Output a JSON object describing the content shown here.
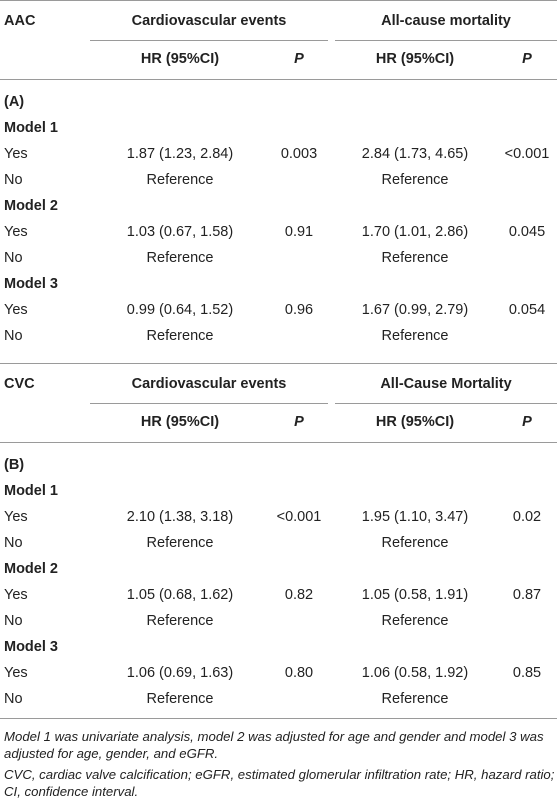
{
  "panelA": {
    "var": "AAC",
    "outcome1": "Cardiovascular events",
    "outcome2": "All-cause mortality",
    "hr_header": "HR (95%CI)",
    "p_header": "P",
    "label": "(A)",
    "models": [
      {
        "name": "Model 1",
        "yes": "Yes",
        "no": "No",
        "hr1": "1.87 (1.23, 2.84)",
        "p1": "0.003",
        "hr2": "2.84 (1.73, 4.65)",
        "p2": "<0.001",
        "ref": "Reference"
      },
      {
        "name": "Model 2",
        "yes": "Yes",
        "no": "No",
        "hr1": "1.03 (0.67, 1.58)",
        "p1": "0.91",
        "hr2": "1.70 (1.01, 2.86)",
        "p2": "0.045",
        "ref": "Reference"
      },
      {
        "name": "Model 3",
        "yes": "Yes",
        "no": "No",
        "hr1": "0.99 (0.64, 1.52)",
        "p1": "0.96",
        "hr2": "1.67 (0.99, 2.79)",
        "p2": "0.054",
        "ref": "Reference"
      }
    ]
  },
  "panelB": {
    "var": "CVC",
    "outcome1": "Cardiovascular events",
    "outcome2": "All-Cause Mortality",
    "hr_header": "HR (95%CI)",
    "p_header": "P",
    "label": "(B)",
    "models": [
      {
        "name": "Model 1",
        "yes": "Yes",
        "no": "No",
        "hr1": "2.10 (1.38, 3.18)",
        "p1": "<0.001",
        "hr2": "1.95 (1.10, 3.47)",
        "p2": "0.02",
        "ref": "Reference"
      },
      {
        "name": "Model 2",
        "yes": "Yes",
        "no": "No",
        "hr1": "1.05 (0.68, 1.62)",
        "p1": "0.82",
        "hr2": "1.05 (0.58, 1.91)",
        "p2": "0.87",
        "ref": "Reference"
      },
      {
        "name": "Model 3",
        "yes": "Yes",
        "no": "No",
        "hr1": "1.06 (0.69, 1.63)",
        "p1": "0.80",
        "hr2": "1.06 (0.58, 1.92)",
        "p2": "0.85",
        "ref": "Reference"
      }
    ]
  },
  "footnote": {
    "line1": "Model 1 was univariate analysis, model 2 was adjusted for age and gender and model 3 was adjusted for age, gender, and eGFR.",
    "line2": "CVC, cardiac valve calcification; eGFR, estimated glomerular infiltration rate; HR, hazard ratio; CI, confidence interval."
  }
}
